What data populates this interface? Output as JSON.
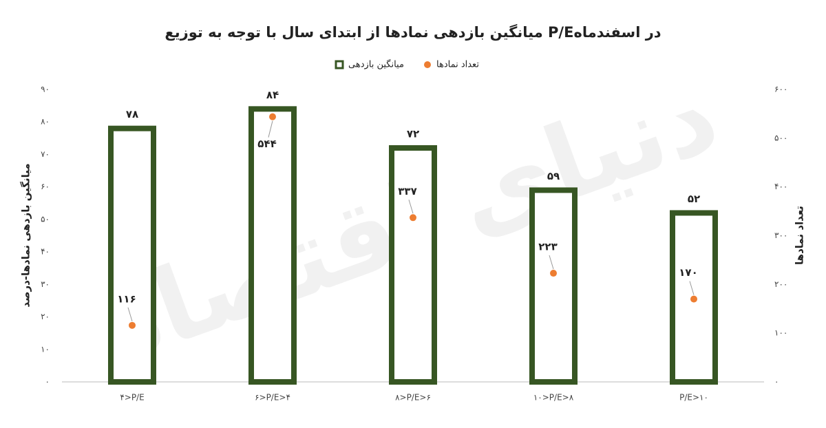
{
  "chart_data": {
    "type": "bar",
    "title": "میانگین بازدهی نمادها از ابتدای سال با توجه به توزیع P/Eدر اسفندماه",
    "watermark": "دنیای اقتصاد",
    "y_label": "میانگین بازدهی نمادها-درصد",
    "y2_label": "تعداد نمادها",
    "categories": [
      "۴>P/E",
      "۶>P/E>۴",
      "۸>P/E>۶",
      "۱۰>P/E>۸",
      "P/E>۱۰"
    ],
    "series": [
      {
        "name": "میانگین بازدهی",
        "type": "bar",
        "color": "#375623",
        "values": [
          78,
          84,
          72,
          59,
          52
        ],
        "value_labels": [
          "۷۸",
          "۸۴",
          "۷۲",
          "۵۹",
          "۵۲"
        ]
      },
      {
        "name": "تعداد نمادها",
        "type": "scatter",
        "axis": "y2",
        "color": "#ed7d31",
        "values": [
          116,
          544,
          337,
          223,
          170
        ],
        "value_labels": [
          "۱۱۶",
          "۵۴۴",
          "۳۳۷",
          "۲۲۳",
          "۱۷۰"
        ]
      }
    ],
    "ylim": [
      0,
      90
    ],
    "yticks": [
      {
        "value": 0,
        "label": "۰"
      },
      {
        "value": 10,
        "label": "۱۰"
      },
      {
        "value": 20,
        "label": "۲۰"
      },
      {
        "value": 30,
        "label": "۳۰"
      },
      {
        "value": 40,
        "label": "۴۰"
      },
      {
        "value": 50,
        "label": "۵۰"
      },
      {
        "value": 60,
        "label": "۶۰"
      },
      {
        "value": 70,
        "label": "۷۰"
      },
      {
        "value": 80,
        "label": "۸۰"
      },
      {
        "value": 90,
        "label": "۹۰"
      }
    ],
    "y2lim": [
      0,
      600
    ],
    "y2ticks": [
      {
        "value": 0,
        "label": "۰"
      },
      {
        "value": 100,
        "label": "۱۰۰"
      },
      {
        "value": 200,
        "label": "۲۰۰"
      },
      {
        "value": 300,
        "label": "۳۰۰"
      },
      {
        "value": 400,
        "label": "۴۰۰"
      },
      {
        "value": 500,
        "label": "۵۰۰"
      },
      {
        "value": 600,
        "label": "۶۰۰"
      }
    ],
    "grid": false
  }
}
